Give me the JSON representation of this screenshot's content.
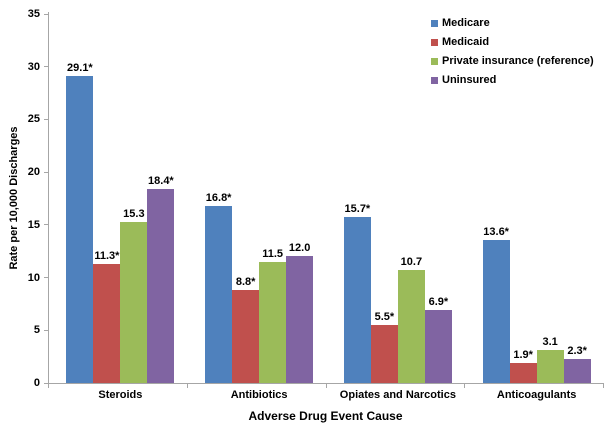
{
  "chart_data": {
    "type": "bar",
    "title": "",
    "xlabel": "Adverse Drug Event Cause",
    "ylabel": "Rate per 10,000 Discharges",
    "ylim": [
      0,
      35
    ],
    "ytick_step": 5,
    "grid": false,
    "legend_position": "top-right",
    "axis_color": "#a6a6a6",
    "categories": [
      "Steroids",
      "Antibiotics",
      "Opiates and Narcotics",
      "Anticoagulants"
    ],
    "series": [
      {
        "name": "Medicare",
        "color": "#4F81BD",
        "values": [
          29.1,
          16.8,
          15.7,
          13.6
        ],
        "labels": [
          "29.1*",
          "16.8*",
          "15.7*",
          "13.6*"
        ]
      },
      {
        "name": "Medicaid",
        "color": "#C0504D",
        "values": [
          11.3,
          8.8,
          5.5,
          1.9
        ],
        "labels": [
          "11.3*",
          "8.8*",
          "5.5*",
          "1.9*"
        ]
      },
      {
        "name": "Private insurance (reference)",
        "color": "#9BBB59",
        "values": [
          15.3,
          11.5,
          10.7,
          3.1
        ],
        "labels": [
          "15.3",
          "11.5",
          "10.7",
          "3.1"
        ]
      },
      {
        "name": "Uninsured",
        "color": "#8064A2",
        "values": [
          18.4,
          12.0,
          6.9,
          2.3
        ],
        "labels": [
          "18.4*",
          "12.0",
          "6.9*",
          "2.3*"
        ]
      }
    ]
  }
}
